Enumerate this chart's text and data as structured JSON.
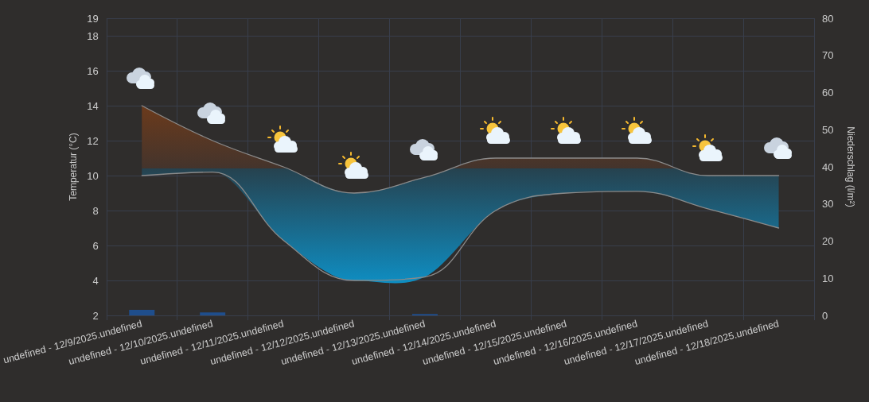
{
  "chart_data": {
    "type": "line",
    "categories": [
      "undefined - 12/9/2025.undefined",
      "undefined - 12/10/2025.undefined",
      "undefined - 12/11/2025.undefined",
      "undefined - 12/12/2025.undefined",
      "undefined - 12/13/2025.undefined",
      "undefined - 12/14/2025.undefined",
      "undefined - 12/15/2025.undefined",
      "undefined - 12/16/2025.undefined",
      "undefined - 12/17/2025.undefined",
      "undefined - 12/18/2025.undefined"
    ],
    "series": [
      {
        "color": "#8a8a8a",
        "values": [
          14,
          12,
          10.5,
          9,
          9.9,
          11,
          11,
          11,
          10,
          10
        ],
        "lower": [
          10,
          10.2,
          6.3,
          4,
          4.2,
          8,
          9,
          9.1,
          8.1,
          7
        ],
        "upper": [
          14,
          12,
          10.5,
          9,
          9.9,
          11,
          11,
          11,
          10,
          10
        ]
      },
      {
        "color": "#8a8a8a",
        "values": [
          10,
          10.2,
          6.3,
          4,
          4.2,
          8,
          9,
          9.1,
          8.1,
          7
        ]
      },
      {
        "type": "bar",
        "axis": "y2",
        "color": "#1f4e8c",
        "values": [
          1.5,
          0.8,
          0,
          0,
          0.4,
          0,
          0,
          0,
          0,
          0
        ]
      }
    ],
    "ylabel": "Temperatur (°C)",
    "y2label": "Niederschlag (l/m²)",
    "ylim": [
      2,
      19
    ],
    "yticks": [
      2,
      4,
      6,
      8,
      10,
      12,
      14,
      16,
      18,
      19
    ],
    "y2lim": [
      0,
      80
    ],
    "y2ticks": [
      0,
      10,
      20,
      30,
      40,
      50,
      60,
      70,
      80
    ],
    "grid": true,
    "marker": "none",
    "line_style": "solid"
  }
}
